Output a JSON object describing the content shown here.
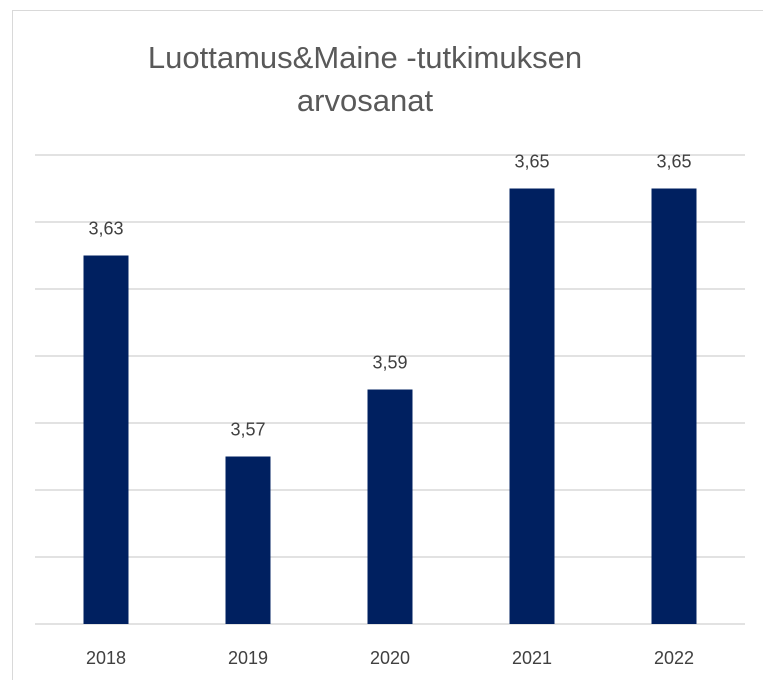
{
  "chart_data": {
    "type": "bar",
    "title": "Luottamus&Maine -tutkimuksen arvosanat",
    "categories": [
      "2018",
      "2019",
      "2020",
      "2021",
      "2022"
    ],
    "values": [
      3.63,
      3.57,
      3.59,
      3.65,
      3.65
    ],
    "value_labels": [
      "3,63",
      "3,57",
      "3,59",
      "3,65",
      "3,65"
    ],
    "color": "#002060",
    "ylim": [
      3.52,
      3.66
    ],
    "yticks": [
      3.52,
      3.54,
      3.56,
      3.58,
      3.6,
      3.62,
      3.64,
      3.66
    ],
    "grid": true
  }
}
